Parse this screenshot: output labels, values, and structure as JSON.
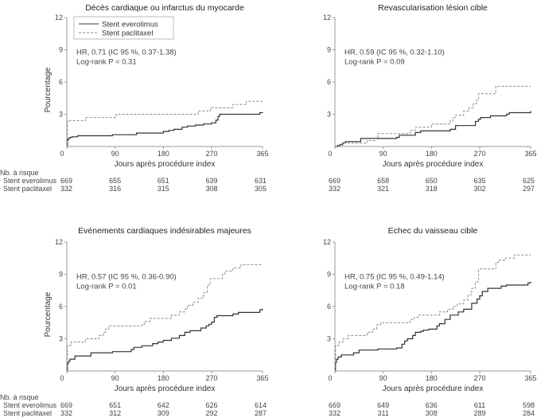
{
  "chart_data": [
    {
      "type": "line",
      "subtype": "kaplan-meier-cumulative-incidence",
      "title": "Décès cardiaque ou infarctus du myocarde",
      "xlabel": "Jours après procédure index",
      "ylabel": "Pourcentage",
      "xlim": [
        0,
        365
      ],
      "ylim": [
        0,
        12
      ],
      "xticks": [
        "0",
        "90",
        "180",
        "270",
        "365"
      ],
      "xtick_values": [
        0,
        90,
        180,
        270,
        365
      ],
      "yticks": [
        "3",
        "6",
        "9",
        "12"
      ],
      "ytick_values": [
        3,
        6,
        9,
        12
      ],
      "y_zero_label": "0",
      "show_ylabel": true,
      "legend": {
        "placement": "top-left",
        "entries": [
          {
            "label": "Stent everolimus",
            "style": "solid"
          },
          {
            "label": "Stent paclitaxel",
            "style": "dashed"
          }
        ]
      },
      "annotations": [
        "HR, 0.71 (IC 95 %, 0.37-1.38)",
        "Log-rank P = 0.31"
      ],
      "series": [
        {
          "name": "Stent everolimus",
          "style": "solid",
          "x": [
            0,
            1,
            3,
            6,
            10,
            20,
            85,
            130,
            180,
            190,
            200,
            215,
            225,
            240,
            255,
            270,
            278,
            282,
            285,
            300,
            360,
            365
          ],
          "y": [
            0,
            0.6,
            0.75,
            0.85,
            0.9,
            1.0,
            1.1,
            1.25,
            1.4,
            1.5,
            1.6,
            1.8,
            1.9,
            2.0,
            2.1,
            2.2,
            2.45,
            2.8,
            3.0,
            3.0,
            3.15,
            3.2
          ]
        },
        {
          "name": "Stent paclitaxel",
          "style": "dashed",
          "x": [
            0,
            1,
            35,
            88,
            92,
            240,
            245,
            262,
            268,
            310,
            335,
            365
          ],
          "y": [
            0,
            2.4,
            2.7,
            2.7,
            3.0,
            3.0,
            3.3,
            3.3,
            3.6,
            3.9,
            4.2,
            4.2
          ]
        }
      ],
      "risk_table": {
        "header": "Nb. à risque",
        "rows": [
          {
            "label": "Stent everolimus",
            "values": [
              "669",
              "655",
              "651",
              "639",
              "631"
            ]
          },
          {
            "label": "Stent paclitaxel",
            "values": [
              "332",
              "316",
              "315",
              "308",
              "305"
            ]
          }
        ]
      }
    },
    {
      "type": "line",
      "subtype": "kaplan-meier-cumulative-incidence",
      "title": "Revascularisation lésion cible",
      "xlabel": "Jours après procédure index",
      "ylabel": "",
      "xlim": [
        0,
        365
      ],
      "ylim": [
        0,
        12
      ],
      "xticks": [
        "0",
        "90",
        "180",
        "270",
        "365"
      ],
      "xtick_values": [
        0,
        90,
        180,
        270,
        365
      ],
      "yticks": [
        "3",
        "6",
        "9",
        "12"
      ],
      "ytick_values": [
        3,
        6,
        9,
        12
      ],
      "y_zero_label": "0",
      "show_ylabel": false,
      "annotations": [
        "HR, 0.59 (IC 95 %, 0.32-1.10)",
        "Log-rank P = 0.09"
      ],
      "series": [
        {
          "name": "Stent everolimus",
          "style": "solid",
          "x": [
            0,
            5,
            10,
            15,
            20,
            48,
            115,
            120,
            150,
            160,
            215,
            225,
            262,
            268,
            272,
            290,
            320,
            325,
            362,
            365
          ],
          "y": [
            0,
            0.1,
            0.2,
            0.35,
            0.45,
            0.75,
            0.85,
            1.05,
            1.3,
            1.45,
            1.6,
            1.95,
            2.35,
            2.55,
            2.7,
            2.85,
            3.0,
            3.15,
            3.15,
            3.3
          ]
        },
        {
          "name": "Stent paclitaxel",
          "style": "dashed",
          "x": [
            0,
            8,
            15,
            60,
            75,
            80,
            140,
            150,
            180,
            215,
            220,
            225,
            240,
            250,
            258,
            265,
            268,
            300,
            365
          ],
          "y": [
            0,
            0.15,
            0.3,
            0.55,
            0.8,
            1.2,
            1.5,
            1.8,
            2.1,
            2.4,
            2.7,
            2.9,
            3.3,
            3.6,
            4.0,
            4.4,
            4.9,
            5.6,
            5.6
          ]
        }
      ],
      "risk_table": {
        "header": "",
        "rows": [
          {
            "label": "",
            "values": [
              "669",
              "658",
              "650",
              "635",
              "625"
            ]
          },
          {
            "label": "",
            "values": [
              "332",
              "321",
              "318",
              "302",
              "297"
            ]
          }
        ]
      }
    },
    {
      "type": "line",
      "subtype": "kaplan-meier-cumulative-incidence",
      "title": "Evénements cardiaques indésirables majeures",
      "xlabel": "Jours après procédure index",
      "ylabel": "Pourcentage",
      "xlim": [
        0,
        365
      ],
      "ylim": [
        0,
        12
      ],
      "xticks": [
        "0",
        "90",
        "180",
        "270",
        "365"
      ],
      "xtick_values": [
        0,
        90,
        180,
        270,
        365
      ],
      "yticks": [
        "3",
        "6",
        "9",
        "12"
      ],
      "ytick_values": [
        3,
        6,
        9,
        12
      ],
      "y_zero_label": "0",
      "show_ylabel": true,
      "annotations": [
        "HR, 0.57 (IC 95 %, 0.36-0.90)",
        "Log-rank P = 0.01"
      ],
      "series": [
        {
          "name": "Stent everolimus",
          "style": "solid",
          "x": [
            0,
            1,
            3,
            6,
            15,
            45,
            85,
            120,
            125,
            140,
            160,
            170,
            180,
            195,
            210,
            220,
            230,
            250,
            260,
            265,
            270,
            275,
            280,
            285,
            310,
            320,
            360,
            365
          ],
          "y": [
            0,
            0.7,
            0.9,
            1.1,
            1.4,
            1.7,
            1.8,
            2.0,
            2.2,
            2.35,
            2.55,
            2.7,
            2.85,
            3.05,
            3.3,
            3.6,
            3.75,
            4.0,
            4.2,
            4.35,
            4.55,
            5.0,
            5.15,
            5.15,
            5.3,
            5.45,
            5.7,
            5.8
          ]
        },
        {
          "name": "Stent paclitaxel",
          "style": "dashed",
          "x": [
            0,
            1,
            8,
            35,
            60,
            68,
            72,
            78,
            140,
            145,
            155,
            175,
            195,
            210,
            220,
            225,
            235,
            245,
            255,
            258,
            262,
            268,
            290,
            295,
            310,
            325,
            365
          ],
          "y": [
            0,
            2.4,
            2.7,
            3.0,
            3.3,
            3.6,
            3.9,
            4.2,
            4.35,
            4.6,
            4.9,
            4.9,
            5.2,
            5.5,
            5.75,
            6.1,
            6.4,
            6.8,
            7.3,
            7.3,
            8.0,
            8.6,
            9.0,
            9.3,
            9.6,
            9.9,
            9.9
          ]
        }
      ],
      "risk_table": {
        "header": "Nb. à risque",
        "rows": [
          {
            "label": "Stent everolimus",
            "values": [
              "669",
              "651",
              "642",
              "626",
              "614"
            ]
          },
          {
            "label": "Stent paclitaxel",
            "values": [
              "332",
              "312",
              "309",
              "292",
              "287"
            ]
          }
        ]
      }
    },
    {
      "type": "line",
      "subtype": "kaplan-meier-cumulative-incidence",
      "title": "Echec du vaisseau cible",
      "xlabel": "Jours après procédure index",
      "ylabel": "",
      "xlim": [
        0,
        365
      ],
      "ylim": [
        0,
        12
      ],
      "xticks": [
        "0",
        "90",
        "180",
        "270",
        "365"
      ],
      "xtick_values": [
        0,
        90,
        180,
        270,
        365
      ],
      "yticks": [
        "3",
        "6",
        "9",
        "12"
      ],
      "ytick_values": [
        3,
        6,
        9,
        12
      ],
      "y_zero_label": "0",
      "show_ylabel": false,
      "annotations": [
        "HR, 0.75 (IC 95 %, 0.49-1.14)",
        "Log-rank P = 0.18"
      ],
      "series": [
        {
          "name": "Stent everolimus",
          "style": "solid",
          "x": [
            0,
            1,
            3,
            6,
            12,
            35,
            45,
            80,
            115,
            125,
            130,
            135,
            145,
            150,
            160,
            165,
            175,
            190,
            195,
            205,
            215,
            230,
            240,
            255,
            265,
            270,
            275,
            285,
            310,
            320,
            360,
            365
          ],
          "y": [
            0,
            0.8,
            1.1,
            1.3,
            1.5,
            1.7,
            1.95,
            2.05,
            2.15,
            2.5,
            2.8,
            3.0,
            3.3,
            3.6,
            3.7,
            3.8,
            3.9,
            4.2,
            4.4,
            4.8,
            5.2,
            5.5,
            5.75,
            6.3,
            6.7,
            7.0,
            7.4,
            7.7,
            7.9,
            8.0,
            8.2,
            8.3
          ]
        },
        {
          "name": "Stent paclitaxel",
          "style": "dashed",
          "x": [
            0,
            1,
            8,
            15,
            25,
            60,
            70,
            78,
            85,
            140,
            148,
            155,
            175,
            195,
            210,
            220,
            228,
            240,
            248,
            255,
            262,
            268,
            300,
            305,
            318,
            335,
            365
          ],
          "y": [
            0,
            2.4,
            2.7,
            3.0,
            3.3,
            3.6,
            3.9,
            4.3,
            4.5,
            4.8,
            5.0,
            5.2,
            5.2,
            5.5,
            5.75,
            6.0,
            6.25,
            6.6,
            7.1,
            7.7,
            8.3,
            9.5,
            10.1,
            10.3,
            10.5,
            10.8,
            10.8
          ]
        }
      ],
      "risk_table": {
        "header": "",
        "rows": [
          {
            "label": "",
            "values": [
              "669",
              "649",
              "636",
              "611",
              "598"
            ]
          },
          {
            "label": "",
            "values": [
              "332",
              "311",
              "308",
              "289",
              "284"
            ]
          }
        ]
      }
    }
  ],
  "colors": {
    "everolimus_line": "#333333",
    "paclitaxel_line": "#888888",
    "axis": "#999999",
    "text": "#444444"
  }
}
